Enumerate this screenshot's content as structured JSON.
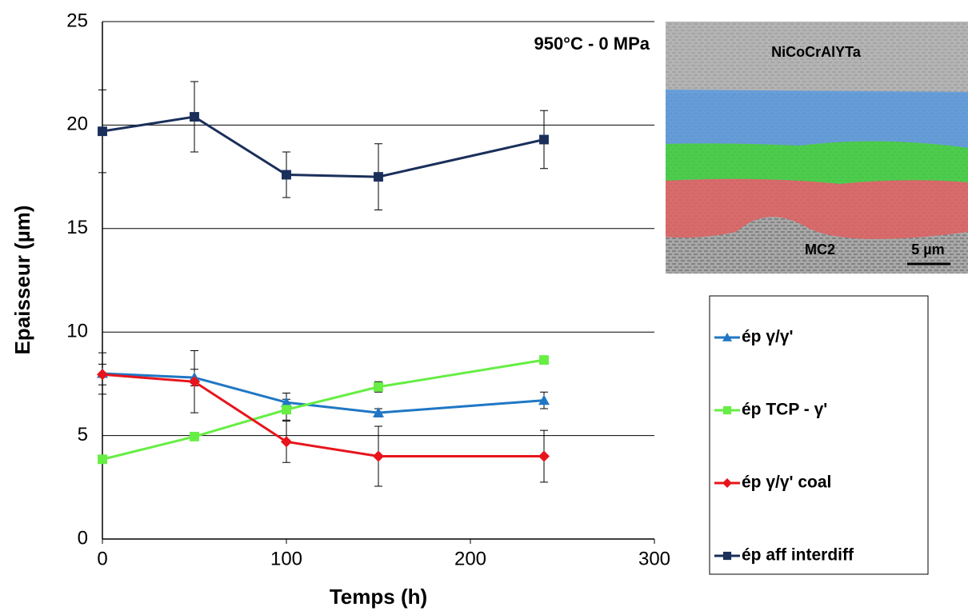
{
  "chart_data": {
    "type": "line",
    "title": "950°C - 0 MPa",
    "x_label": "Temps (h)",
    "y_label": "Epaisseur (µm)",
    "x": [
      0,
      50,
      100,
      150,
      240
    ],
    "xlim": [
      0,
      300
    ],
    "xticks": [
      0,
      100,
      200,
      300
    ],
    "ylim": [
      0,
      25
    ],
    "yticks": [
      0,
      5,
      10,
      15,
      20,
      25
    ],
    "grid": true,
    "series": [
      {
        "name": "ép γ/γ'",
        "color": "#1f77c4",
        "marker": "triangle",
        "values": [
          8.0,
          7.8,
          6.6,
          6.1,
          6.7
        ],
        "errors": [
          1.0,
          0.4,
          0.45,
          0.2,
          0.4
        ]
      },
      {
        "name": "ép TCP - γ'",
        "color": "#66ee44",
        "marker": "square",
        "values": [
          3.85,
          4.95,
          6.25,
          7.35,
          8.65
        ],
        "errors": [
          0.2,
          0.1,
          0.5,
          0.25,
          0.1
        ]
      },
      {
        "name": "ép γ/γ' coal",
        "color": "#e8141c",
        "marker": "diamond",
        "values": [
          7.95,
          7.6,
          4.7,
          4.0,
          4.0
        ],
        "errors": [
          0.5,
          1.5,
          1.0,
          1.45,
          1.25
        ]
      },
      {
        "name": "ép aff interdiff",
        "color": "#1a2f5a",
        "marker": "square",
        "values": [
          19.7,
          20.4,
          17.6,
          17.5,
          19.3
        ],
        "errors": [
          2.0,
          1.7,
          1.1,
          1.6,
          1.4
        ]
      }
    ],
    "image_labels": [
      "NiCoCrAlYTa",
      "MC2",
      "5 µm"
    ]
  }
}
